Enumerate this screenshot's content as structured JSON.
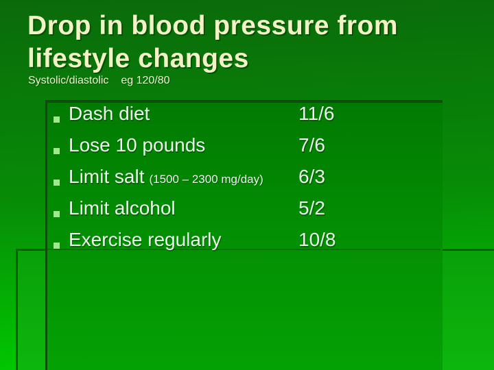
{
  "slide": {
    "title": "Drop in blood pressure from lifestyle changes",
    "subtitle": {
      "label": "Systolic/diastolic",
      "example": "eg 120/80"
    },
    "list": [
      {
        "label": "Dash diet",
        "note": "",
        "value": "11/6"
      },
      {
        "label": "Lose 10 pounds",
        "note": "",
        "value": "7/6"
      },
      {
        "label": "Limit salt",
        "note": "(1500 – 2300 mg/day)",
        "value": "6/3"
      },
      {
        "label": "Limit alcohol",
        "note": "",
        "value": "5/2"
      },
      {
        "label": "Exercise regularly",
        "note": "",
        "value": "10/8"
      }
    ],
    "colors": {
      "background_top": "#0a6a0a",
      "background_bottom": "#00cc00",
      "panel_green": "#039303",
      "title_text": "#f2f2c6",
      "body_text": "#ebf7eb",
      "bullet_green": "#9cea8c"
    }
  }
}
